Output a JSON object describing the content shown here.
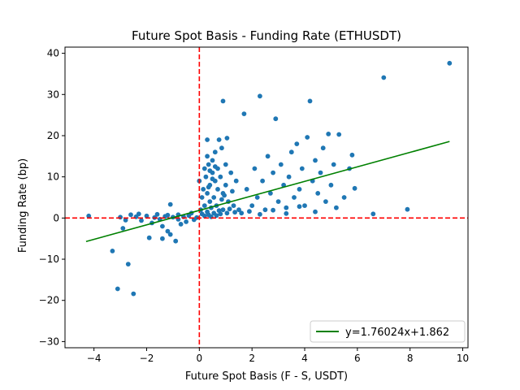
{
  "chart_data": {
    "type": "scatter",
    "title": "Future Spot Basis - Funding Rate (ETHUSDT)",
    "xlabel": "Future Spot Basis (F - S, USDT)",
    "ylabel": "Funding Rate (bp)",
    "xlim": [
      -5.1,
      10.2
    ],
    "ylim": [
      -31.5,
      41.5
    ],
    "xticks": [
      -4,
      -2,
      0,
      2,
      4,
      6,
      8,
      10
    ],
    "yticks": [
      -30,
      -20,
      -10,
      0,
      10,
      20,
      30,
      40
    ],
    "grid": false,
    "legend": {
      "position": "lower-right",
      "entries": [
        "y=1.76024x+1.862"
      ]
    },
    "point_color": "#1f77b4",
    "fit_color": "#008000",
    "reference_line_color": "#ff0000",
    "reference_lines": {
      "x": 0,
      "y": 0
    },
    "fit_line": {
      "label": "y=1.76024x+1.862",
      "slope": 1.76024,
      "intercept": 1.862,
      "x_range": [
        -4.3,
        9.5
      ]
    },
    "scatter": [
      [
        -4.2,
        0.5
      ],
      [
        -3.3,
        -8
      ],
      [
        -3.1,
        -17.2
      ],
      [
        -2.7,
        -11.2
      ],
      [
        -2.5,
        -18.4
      ],
      [
        -2.9,
        -2.5
      ],
      [
        -2.6,
        0.8
      ],
      [
        -2.4,
        0.3
      ],
      [
        -2.2,
        -0.6
      ],
      [
        -2.0,
        0.5
      ],
      [
        -1.8,
        -1.2
      ],
      [
        -1.9,
        -4.8
      ],
      [
        -1.6,
        0.9
      ],
      [
        -1.5,
        -0.3
      ],
      [
        -1.4,
        -2
      ],
      [
        -1.4,
        -5
      ],
      [
        -1.3,
        0.4
      ],
      [
        -1.2,
        -3.2
      ],
      [
        -1.1,
        3.3
      ],
      [
        -1.1,
        -4
      ],
      [
        -1.0,
        0.2
      ],
      [
        -0.9,
        -5.6
      ],
      [
        -0.8,
        0.8
      ],
      [
        -0.7,
        -1.5
      ],
      [
        -0.6,
        0.3
      ],
      [
        -0.5,
        -0.9
      ],
      [
        -0.4,
        0.6
      ],
      [
        -0.3,
        1.2
      ],
      [
        -0.2,
        -0.4
      ],
      [
        -0.1,
        0.1
      ],
      [
        -3.0,
        0.2
      ],
      [
        -2.8,
        -0.5
      ],
      [
        -2.3,
        1.0
      ],
      [
        -1.7,
        0.1
      ],
      [
        -1.2,
        0.7
      ],
      [
        -0.8,
        -0.3
      ],
      [
        0.0,
        9
      ],
      [
        0.05,
        2
      ],
      [
        0.1,
        5
      ],
      [
        0.1,
        1
      ],
      [
        0.15,
        7
      ],
      [
        0.2,
        3
      ],
      [
        0.2,
        0.5
      ],
      [
        0.25,
        10
      ],
      [
        0.3,
        6
      ],
      [
        0.3,
        1.5
      ],
      [
        0.35,
        13
      ],
      [
        0.4,
        4
      ],
      [
        0.4,
        8
      ],
      [
        0.45,
        2.5
      ],
      [
        0.5,
        11
      ],
      [
        0.5,
        14
      ],
      [
        0.55,
        5
      ],
      [
        0.6,
        9
      ],
      [
        0.6,
        16
      ],
      [
        0.65,
        3
      ],
      [
        0.7,
        12
      ],
      [
        0.7,
        7
      ],
      [
        0.75,
        19
      ],
      [
        0.8,
        1
      ],
      [
        0.8,
        10
      ],
      [
        0.85,
        17
      ],
      [
        0.9,
        6
      ],
      [
        0.9,
        2
      ],
      [
        1.0,
        13
      ],
      [
        1.0,
        8
      ],
      [
        1.1,
        4
      ],
      [
        1.2,
        11
      ],
      [
        1.3,
        3
      ],
      [
        1.4,
        9
      ],
      [
        1.5,
        2
      ],
      [
        0.3,
        19
      ],
      [
        0.35,
        0.8
      ],
      [
        0.45,
        0.3
      ],
      [
        0.55,
        1.2
      ],
      [
        0.65,
        0.6
      ],
      [
        0.75,
        1.8
      ],
      [
        0.85,
        4.5
      ],
      [
        0.95,
        5.5
      ],
      [
        1.05,
        1.2
      ],
      [
        1.15,
        2.2
      ],
      [
        1.25,
        6.5
      ],
      [
        1.35,
        1.4
      ],
      [
        0.9,
        28.4
      ],
      [
        1.05,
        19.4
      ],
      [
        1.7,
        25.3
      ],
      [
        2.3,
        29.6
      ],
      [
        2.9,
        24.1
      ],
      [
        1.8,
        7
      ],
      [
        2.0,
        3
      ],
      [
        2.1,
        12
      ],
      [
        2.2,
        5
      ],
      [
        2.4,
        9
      ],
      [
        2.5,
        2
      ],
      [
        2.6,
        15
      ],
      [
        2.7,
        6
      ],
      [
        2.8,
        11
      ],
      [
        3.0,
        4
      ],
      [
        3.1,
        13
      ],
      [
        3.2,
        8
      ],
      [
        3.3,
        2.5
      ],
      [
        3.4,
        10
      ],
      [
        3.5,
        16
      ],
      [
        3.6,
        5
      ],
      [
        3.7,
        18
      ],
      [
        3.8,
        7
      ],
      [
        3.9,
        12
      ],
      [
        4.0,
        3
      ],
      [
        4.1,
        19.6
      ],
      [
        4.2,
        28.4
      ],
      [
        4.3,
        9
      ],
      [
        4.4,
        14
      ],
      [
        4.5,
        6
      ],
      [
        4.6,
        11
      ],
      [
        4.7,
        17
      ],
      [
        4.8,
        4
      ],
      [
        4.9,
        20.4
      ],
      [
        5.0,
        8
      ],
      [
        5.1,
        13
      ],
      [
        5.2,
        2.5
      ],
      [
        5.3,
        20.3
      ],
      [
        5.5,
        5
      ],
      [
        5.7,
        12
      ],
      [
        5.8,
        15.3
      ],
      [
        5.9,
        7.2
      ],
      [
        6.6,
        1
      ],
      [
        7.0,
        34.1
      ],
      [
        7.9,
        2.1
      ],
      [
        9.5,
        37.6
      ],
      [
        1.6,
        1.2
      ],
      [
        1.9,
        1.6
      ],
      [
        2.3,
        0.9
      ],
      [
        2.8,
        1.9
      ],
      [
        3.3,
        1.1
      ],
      [
        3.8,
        2.8
      ],
      [
        4.4,
        1.5
      ],
      [
        0.2,
        12
      ],
      [
        0.3,
        15
      ],
      [
        0.4,
        11.5
      ],
      [
        0.5,
        9.5
      ],
      [
        0.6,
        12.5
      ],
      [
        0.35,
        7.5
      ]
    ]
  }
}
